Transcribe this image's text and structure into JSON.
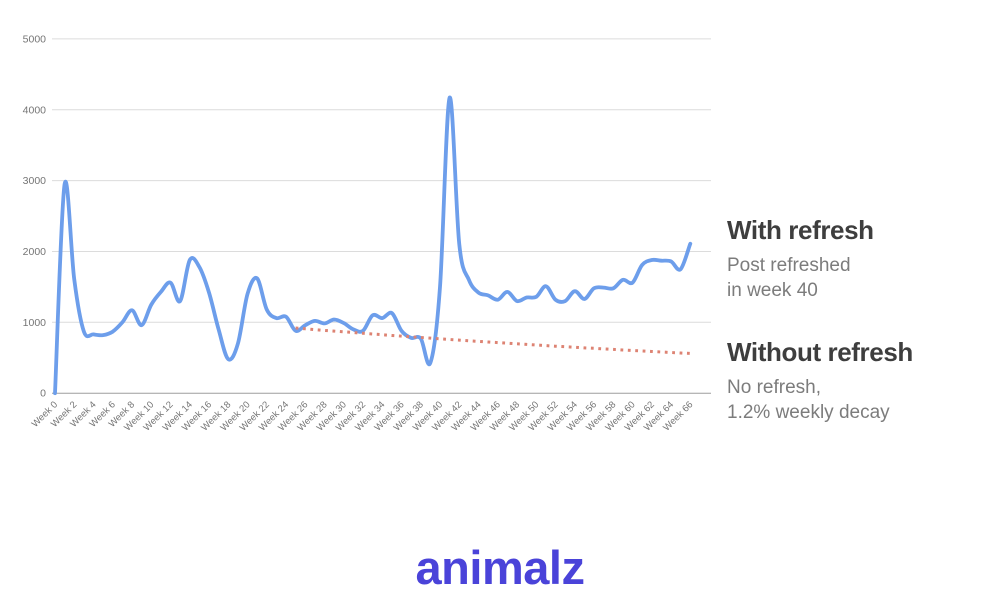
{
  "chart_data": {
    "type": "line",
    "title": "",
    "xlabel": "",
    "ylabel": "",
    "ylim": [
      0,
      5000
    ],
    "grid": true,
    "y_ticks": [
      0,
      1000,
      2000,
      3000,
      4000,
      5000
    ],
    "x_tick_labels": [
      "Week 0",
      "Week 2",
      "Week 4",
      "Week 6",
      "Week 8",
      "Week 10",
      "Week 12",
      "Week 14",
      "Week 16",
      "Week 18",
      "Week 20",
      "Week 22",
      "Week 24",
      "Week 26",
      "Week 28",
      "Week 30",
      "Week 32",
      "Week 34",
      "Week 36",
      "Week 38",
      "Week 40",
      "Week 42",
      "Week 44",
      "Week 46",
      "Week 48",
      "Week 50",
      "Week 52",
      "Week 54",
      "Week 56",
      "Week 58",
      "Week 60",
      "Week 62",
      "Week 64",
      "Week 66"
    ],
    "x_week_range": [
      0,
      66
    ],
    "legend_position": "right-annotations",
    "series": [
      {
        "name": "With refresh",
        "style": "solid-smooth",
        "color": "#6d9eeb",
        "start_week": 0,
        "values": [
          0,
          2950,
          1600,
          870,
          830,
          820,
          870,
          1000,
          1170,
          960,
          1250,
          1430,
          1560,
          1300,
          1880,
          1780,
          1420,
          900,
          480,
          700,
          1400,
          1620,
          1180,
          1060,
          1080,
          880,
          960,
          1020,
          985,
          1040,
          990,
          900,
          880,
          1100,
          1060,
          1130,
          880,
          780,
          770,
          430,
          1500,
          4170,
          2100,
          1600,
          1420,
          1380,
          1320,
          1430,
          1300,
          1350,
          1360,
          1510,
          1320,
          1300,
          1440,
          1330,
          1480,
          1490,
          1480,
          1600,
          1560,
          1810,
          1880,
          1870,
          1860,
          1750,
          2110
        ]
      },
      {
        "name": "Without refresh",
        "style": "dotted",
        "color": "#dd8373",
        "start_week": 25,
        "decay_rate_weekly_pct": 1.2,
        "values": [
          920,
          909,
          898,
          887,
          877,
          866,
          856,
          845,
          835,
          825,
          815,
          806,
          796,
          786,
          777,
          768,
          758,
          749,
          740,
          731,
          723,
          714,
          705,
          697,
          689,
          680,
          672,
          664,
          656,
          648,
          640,
          633,
          625,
          618,
          610,
          603,
          596,
          589,
          581,
          575,
          568,
          561
        ]
      }
    ]
  },
  "annotations": {
    "with_refresh": {
      "title": "With refresh",
      "line1": "Post refreshed",
      "line2": "in week 40"
    },
    "without_refresh": {
      "title": "Without refresh",
      "line1": "No refresh,",
      "line2": "1.2% weekly decay"
    }
  },
  "branding": {
    "logo_text": "animalz",
    "logo_color": "#4a43d9"
  },
  "colors": {
    "blue_line": "#6d9eeb",
    "red_dotted_line": "#dd8373",
    "gridline": "#dcdcdc",
    "axis_line": "#9e9e9e",
    "axis_label": "#757575",
    "annotation_title": "#3e3e3e",
    "annotation_subtitle": "#7c7c7c",
    "background": "#ffffff"
  }
}
